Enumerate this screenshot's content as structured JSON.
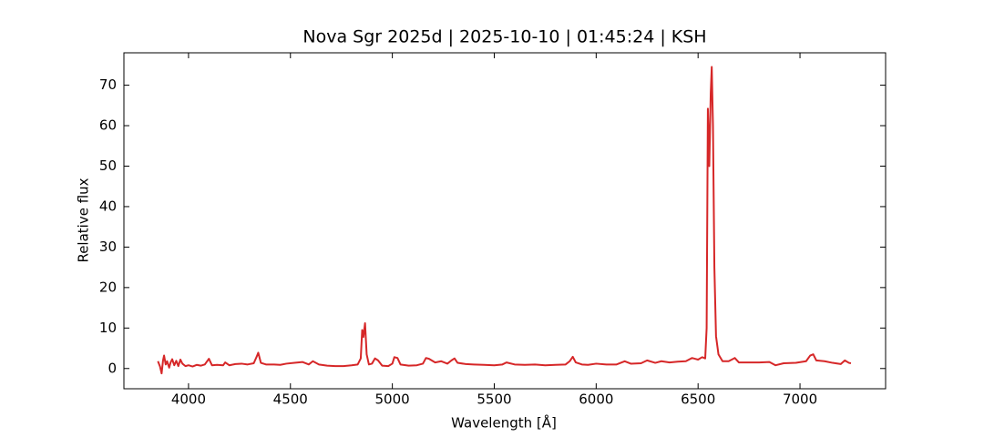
{
  "chart_data": {
    "type": "line",
    "title": "Nova Sgr 2025d | 2025-10-10 | 01:45:24 | KSH",
    "xlabel": "Wavelength [Å]",
    "ylabel": "Relative flux",
    "xlim": [
      3683,
      7420
    ],
    "ylim": [
      -5,
      78
    ],
    "xticks": [
      4000,
      4500,
      5000,
      5500,
      6000,
      6500,
      7000
    ],
    "yticks": [
      0,
      10,
      20,
      30,
      40,
      50,
      60,
      70
    ],
    "x": [
      3850,
      3860,
      3868,
      3875,
      3880,
      3888,
      3895,
      3905,
      3912,
      3920,
      3930,
      3940,
      3950,
      3960,
      3970,
      3985,
      4000,
      4020,
      4040,
      4060,
      4080,
      4100,
      4115,
      4140,
      4170,
      4180,
      4200,
      4230,
      4260,
      4290,
      4320,
      4335,
      4342,
      4355,
      4380,
      4420,
      4450,
      4480,
      4520,
      4560,
      4590,
      4610,
      4640,
      4680,
      4720,
      4760,
      4800,
      4830,
      4845,
      4852,
      4858,
      4866,
      4874,
      4885,
      4900,
      4915,
      4930,
      4950,
      4980,
      5000,
      5010,
      5025,
      5040,
      5080,
      5120,
      5150,
      5165,
      5180,
      5210,
      5240,
      5270,
      5290,
      5305,
      5320,
      5360,
      5400,
      5450,
      5500,
      5540,
      5560,
      5600,
      5650,
      5700,
      5750,
      5800,
      5850,
      5870,
      5885,
      5900,
      5930,
      5960,
      6000,
      6050,
      6100,
      6140,
      6170,
      6220,
      6250,
      6290,
      6320,
      6360,
      6400,
      6440,
      6470,
      6500,
      6520,
      6535,
      6542,
      6548,
      6555,
      6562,
      6567,
      6573,
      6580,
      6588,
      6600,
      6620,
      6650,
      6680,
      6700,
      6750,
      6800,
      6850,
      6880,
      6920,
      6980,
      7030,
      7050,
      7065,
      7080,
      7120,
      7160,
      7200,
      7220,
      7240,
      7250
    ],
    "series": [
      {
        "color": "#d62728",
        "values": [
          1.8,
          0.5,
          -1.2,
          2.0,
          3.2,
          1.0,
          1.8,
          0.2,
          1.5,
          2.3,
          0.8,
          1.9,
          0.6,
          2.2,
          1.2,
          0.6,
          0.8,
          0.5,
          0.9,
          0.7,
          1.0,
          2.4,
          0.8,
          0.9,
          0.8,
          1.5,
          0.8,
          1.1,
          1.2,
          1.0,
          1.3,
          3.0,
          3.9,
          1.4,
          1.0,
          1.0,
          0.9,
          1.2,
          1.4,
          1.6,
          1.0,
          1.8,
          1.0,
          0.7,
          0.6,
          0.6,
          0.8,
          1.0,
          2.5,
          9.5,
          7.8,
          11.2,
          3.5,
          1.0,
          1.2,
          2.5,
          2.0,
          0.7,
          0.6,
          1.2,
          2.8,
          2.6,
          1.0,
          0.7,
          0.8,
          1.2,
          2.6,
          2.4,
          1.5,
          1.8,
          1.2,
          2.0,
          2.5,
          1.4,
          1.1,
          1.0,
          0.9,
          0.8,
          1.0,
          1.5,
          1.0,
          0.9,
          1.0,
          0.8,
          0.9,
          1.0,
          1.8,
          2.9,
          1.5,
          1.0,
          0.9,
          1.2,
          1.0,
          1.0,
          1.8,
          1.2,
          1.3,
          2.0,
          1.4,
          1.8,
          1.5,
          1.7,
          1.8,
          2.6,
          2.2,
          2.8,
          2.5,
          10,
          64.2,
          50,
          68,
          74.5,
          60,
          25,
          8,
          3.5,
          1.8,
          1.8,
          2.6,
          1.5,
          1.5,
          1.5,
          1.6,
          0.8,
          1.3,
          1.4,
          1.8,
          3.2,
          3.5,
          2.0,
          1.8,
          1.4,
          1.1,
          2.0,
          1.4,
          1.3
        ]
      }
    ]
  }
}
